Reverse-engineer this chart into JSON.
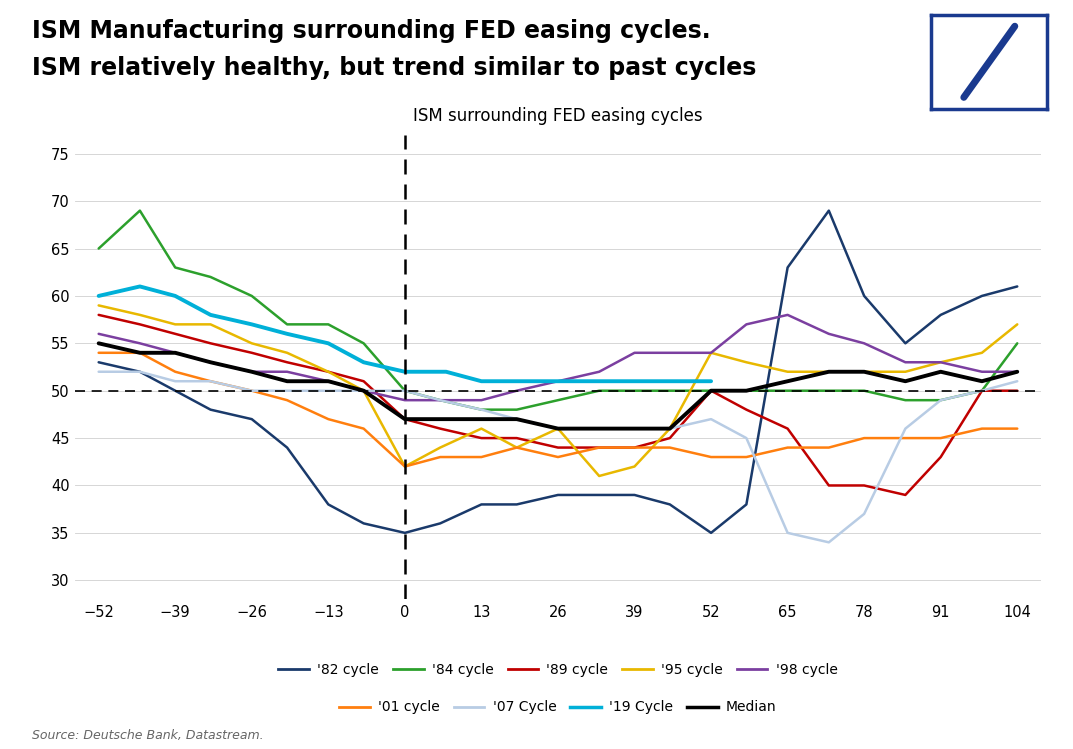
{
  "title_main_line1": "ISM Manufacturing surrounding FED easing cycles.",
  "title_main_line2": "ISM relatively healthy, but trend similar to past cycles",
  "chart_title": "ISM surrounding FED easing cycles",
  "source": "Source: Deutsche Bank, Datastream.",
  "x_ticks": [
    -52,
    -39,
    -26,
    -13,
    0,
    13,
    26,
    39,
    52,
    65,
    78,
    91,
    104
  ],
  "y_ticks": [
    30,
    35,
    40,
    45,
    50,
    55,
    60,
    65,
    70,
    75
  ],
  "xlim": [
    -56,
    108
  ],
  "ylim": [
    28,
    77
  ],
  "hline_y": 50,
  "vline_x": 0,
  "cycles": {
    "82": {
      "color": "#1a3a6b",
      "label": "'82 cycle",
      "lw": 1.8,
      "x": [
        -52,
        -45,
        -39,
        -33,
        -26,
        -20,
        -13,
        -7,
        0,
        6,
        13,
        19,
        26,
        33,
        39,
        45,
        52,
        58,
        65,
        72,
        78,
        85,
        91,
        98,
        104
      ],
      "y": [
        53,
        52,
        50,
        48,
        47,
        44,
        38,
        36,
        35,
        36,
        38,
        38,
        39,
        39,
        39,
        38,
        35,
        38,
        63,
        69,
        60,
        55,
        58,
        60,
        61
      ]
    },
    "84": {
      "color": "#2ca02c",
      "label": "'84 cycle",
      "lw": 1.8,
      "x": [
        -52,
        -45,
        -39,
        -33,
        -26,
        -20,
        -13,
        -7,
        0,
        6,
        13,
        19,
        26,
        33,
        39,
        45,
        52,
        58,
        65,
        72,
        78,
        85,
        91,
        98,
        104
      ],
      "y": [
        65,
        69,
        63,
        62,
        60,
        57,
        57,
        55,
        50,
        49,
        48,
        48,
        49,
        50,
        50,
        50,
        50,
        50,
        50,
        50,
        50,
        49,
        49,
        50,
        55
      ]
    },
    "89": {
      "color": "#c00000",
      "label": "'89 cycle",
      "lw": 1.8,
      "x": [
        -52,
        -45,
        -39,
        -33,
        -26,
        -20,
        -13,
        -7,
        0,
        6,
        13,
        19,
        26,
        33,
        39,
        45,
        52,
        58,
        65,
        72,
        78,
        85,
        91,
        98,
        104
      ],
      "y": [
        58,
        57,
        56,
        55,
        54,
        53,
        52,
        51,
        47,
        46,
        45,
        45,
        44,
        44,
        44,
        45,
        50,
        48,
        46,
        40,
        40,
        39,
        43,
        50,
        50
      ]
    },
    "95": {
      "color": "#e8b800",
      "label": "'95 cycle",
      "lw": 1.8,
      "x": [
        -52,
        -45,
        -39,
        -33,
        -26,
        -20,
        -13,
        -7,
        0,
        6,
        13,
        19,
        26,
        33,
        39,
        45,
        52,
        58,
        65,
        72,
        78,
        85,
        91,
        98,
        104
      ],
      "y": [
        59,
        58,
        57,
        57,
        55,
        54,
        52,
        50,
        42,
        44,
        46,
        44,
        46,
        41,
        42,
        46,
        54,
        53,
        52,
        52,
        52,
        52,
        53,
        54,
        57
      ]
    },
    "98": {
      "color": "#7b3fa0",
      "label": "'98 cycle",
      "lw": 1.8,
      "x": [
        -52,
        -45,
        -39,
        -33,
        -26,
        -20,
        -13,
        -7,
        0,
        6,
        13,
        19,
        26,
        33,
        39,
        45,
        52,
        58,
        65,
        72,
        78,
        85,
        91,
        98,
        104
      ],
      "y": [
        56,
        55,
        54,
        53,
        52,
        52,
        51,
        50,
        49,
        49,
        49,
        50,
        51,
        52,
        54,
        54,
        54,
        57,
        58,
        56,
        55,
        53,
        53,
        52,
        52
      ]
    },
    "01": {
      "color": "#ff7f0e",
      "label": "'01 cycle",
      "lw": 1.8,
      "x": [
        -52,
        -45,
        -39,
        -33,
        -26,
        -20,
        -13,
        -7,
        0,
        6,
        13,
        19,
        26,
        33,
        39,
        45,
        52,
        58,
        65,
        72,
        78,
        85,
        91,
        98,
        104
      ],
      "y": [
        54,
        54,
        52,
        51,
        50,
        49,
        47,
        46,
        42,
        43,
        43,
        44,
        43,
        44,
        44,
        44,
        43,
        43,
        44,
        44,
        45,
        45,
        45,
        46,
        46
      ]
    },
    "07": {
      "color": "#b8cce4",
      "label": "'07 Cycle",
      "lw": 1.8,
      "x": [
        -52,
        -45,
        -39,
        -33,
        -26,
        -20,
        -13,
        -7,
        0,
        6,
        13,
        19,
        26,
        33,
        39,
        45,
        52,
        58,
        65,
        72,
        78,
        85,
        91,
        98,
        104
      ],
      "y": [
        52,
        52,
        51,
        51,
        50,
        50,
        50,
        50,
        50,
        49,
        48,
        47,
        46,
        46,
        46,
        46,
        47,
        45,
        35,
        34,
        37,
        46,
        49,
        50,
        51
      ]
    },
    "19": {
      "color": "#00b0d8",
      "label": "'19 Cycle",
      "lw": 2.8,
      "x": [
        -52,
        -45,
        -39,
        -33,
        -26,
        -20,
        -13,
        -7,
        0,
        7,
        13,
        19,
        26,
        33,
        39,
        45,
        52
      ],
      "y": [
        60,
        61,
        60,
        58,
        57,
        56,
        55,
        53,
        52,
        52,
        51,
        51,
        51,
        51,
        51,
        51,
        51
      ]
    },
    "median": {
      "color": "#000000",
      "label": "Median",
      "lw": 2.8,
      "x": [
        -52,
        -45,
        -39,
        -33,
        -26,
        -20,
        -13,
        -7,
        0,
        6,
        13,
        19,
        26,
        33,
        39,
        45,
        52,
        58,
        65,
        72,
        78,
        85,
        91,
        98,
        104
      ],
      "y": [
        55,
        54,
        54,
        53,
        52,
        51,
        51,
        50,
        47,
        47,
        47,
        47,
        46,
        46,
        46,
        46,
        50,
        50,
        51,
        52,
        52,
        51,
        52,
        51,
        52
      ]
    }
  },
  "background_color": "#ffffff",
  "title_fontsize": 17,
  "chart_title_fontsize": 12,
  "tick_fontsize": 10.5,
  "legend_fontsize": 10
}
